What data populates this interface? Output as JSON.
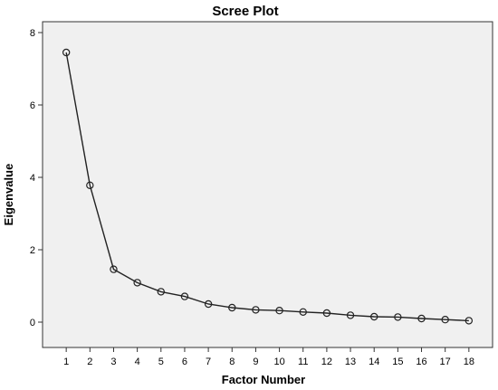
{
  "chart_data": {
    "type": "line",
    "title": "Scree Plot",
    "xlabel": "Factor Number",
    "ylabel": "Eigenvalue",
    "x": [
      1,
      2,
      3,
      4,
      5,
      6,
      7,
      8,
      9,
      10,
      11,
      12,
      13,
      14,
      15,
      16,
      17,
      18
    ],
    "values": [
      7.45,
      3.78,
      1.46,
      1.09,
      0.84,
      0.71,
      0.5,
      0.4,
      0.34,
      0.32,
      0.28,
      0.25,
      0.19,
      0.15,
      0.14,
      0.1,
      0.07,
      0.04
    ],
    "xlim": [
      0,
      19
    ],
    "ylim": [
      -0.7,
      8.3
    ],
    "x_ticks": [
      "1",
      "2",
      "3",
      "4",
      "5",
      "6",
      "7",
      "8",
      "9",
      "10",
      "11",
      "12",
      "13",
      "14",
      "15",
      "16",
      "17",
      "18"
    ],
    "y_ticks": [
      "0",
      "2",
      "4",
      "6",
      "8"
    ],
    "grid": false,
    "legend": "none",
    "colors": {
      "plot_background": "#f0f0f0",
      "line": "#222222",
      "marker": "#222222"
    }
  }
}
